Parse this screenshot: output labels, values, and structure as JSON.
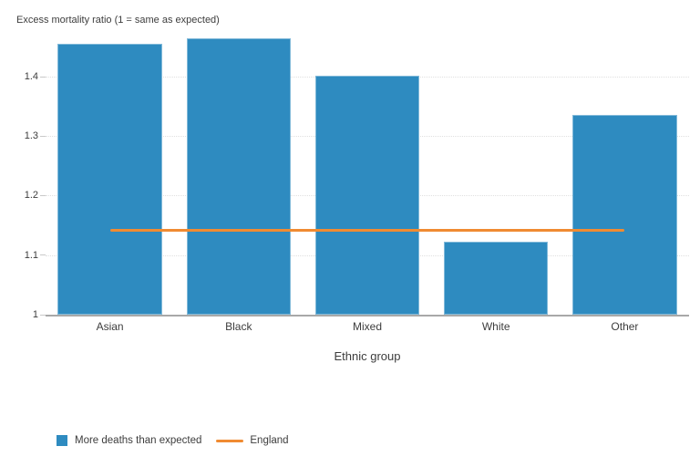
{
  "chart_data": {
    "type": "bar",
    "title": "Excess mortality ratio (1 = same as expected)",
    "xlabel": "Ethnic group",
    "ylabel": "",
    "categories": [
      "Asian",
      "Black",
      "Mixed",
      "White",
      "Other"
    ],
    "series": [
      {
        "name": "More deaths than expected",
        "type": "bar",
        "color": "#2e8bc0",
        "values": [
          1.455,
          1.465,
          1.402,
          1.123,
          1.336
        ]
      },
      {
        "name": "England",
        "type": "line",
        "color": "#f08b32",
        "values": [
          1.142,
          1.142,
          1.142,
          1.142,
          1.142
        ]
      }
    ],
    "ylim": [
      1,
      1.475
    ],
    "yticks": [
      1,
      1.1,
      1.2,
      1.3,
      1.4
    ],
    "grid": true,
    "legend_position": "bottom-left"
  },
  "colors": {
    "bar": "#2e8bc0",
    "reference_line": "#f08b32",
    "axis_line": "#a8a8a8",
    "gridline": "#e0e0e0",
    "text": "#3d3d3d",
    "background": "#ffffff"
  }
}
